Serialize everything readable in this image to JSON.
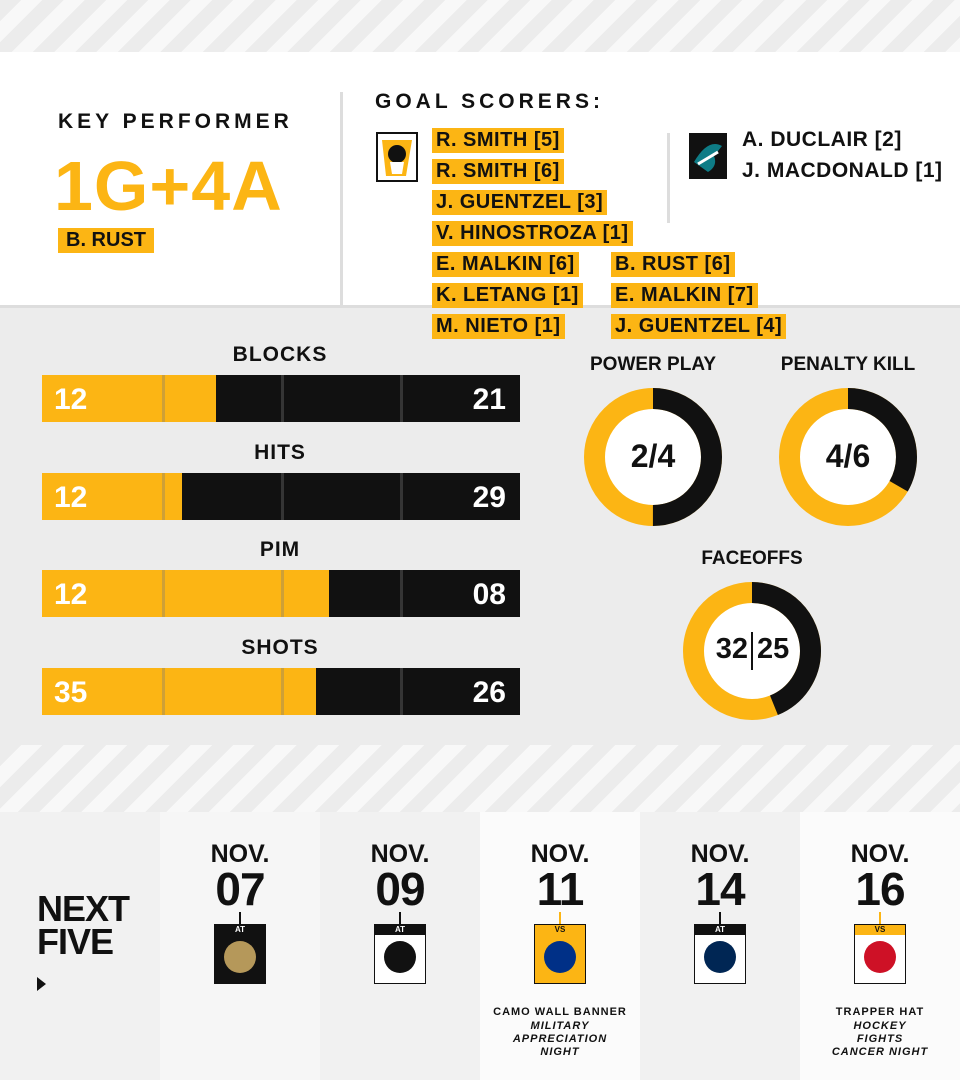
{
  "key_performer": {
    "heading": "KEY PERFORMER",
    "stat": "1G+4A",
    "player": "B. RUST"
  },
  "goal_scorers": {
    "heading": "GOAL SCORERS:",
    "home": [
      "R. SMITH [5]",
      "R. SMITH [6]",
      "J. GUENTZEL [3]",
      "V. HINOSTROZA [1]",
      "E. MALKIN [6]",
      "K. LETANG [1]",
      "M. NIETO [1]",
      "B. RUST [6]",
      "E. MALKIN [7]",
      "J. GUENTZEL [4]"
    ],
    "away": [
      "A. DUCLAIR [2]",
      "J. MACDONALD [1]"
    ]
  },
  "stats": [
    {
      "label": "BLOCKS",
      "home": "12",
      "away": "21"
    },
    {
      "label": "HITS",
      "home": "12",
      "away": "29"
    },
    {
      "label": "PIM",
      "home": "12",
      "away": "08"
    },
    {
      "label": "SHOTS",
      "home": "35",
      "away": "26"
    }
  ],
  "power_play": {
    "label": "POWER PLAY",
    "value": "2/4"
  },
  "penalty_kill": {
    "label": "PENALTY KILL",
    "value": "4/6"
  },
  "faceoffs": {
    "label": "FACEOFFS",
    "home": "32",
    "away": "25"
  },
  "next_five": {
    "heading": [
      "NEXT",
      "FIVE"
    ],
    "games": [
      {
        "month": "NOV.",
        "day": "07",
        "venue": "AT"
      },
      {
        "month": "NOV.",
        "day": "09",
        "venue": "AT"
      },
      {
        "month": "NOV.",
        "day": "11",
        "venue": "VS",
        "promo": "CAMO WALL BANNER",
        "event": "MILITARY APPRECIATION NIGHT"
      },
      {
        "month": "NOV.",
        "day": "14",
        "venue": "AT"
      },
      {
        "month": "NOV.",
        "day": "16",
        "venue": "VS",
        "promo": "TRAPPER HAT",
        "event": "HOCKEY FIGHTS CANCER NIGHT"
      }
    ]
  }
}
